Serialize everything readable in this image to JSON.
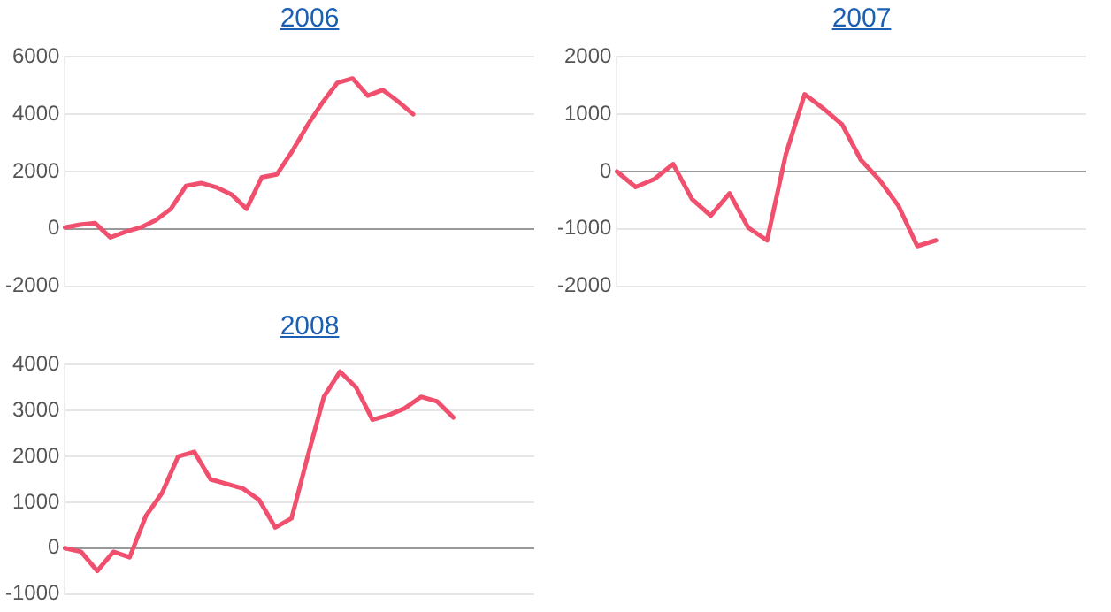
{
  "chart_data": [
    {
      "type": "line",
      "title": "2006",
      "categories": [
        null,
        null,
        null,
        null,
        null,
        null,
        null,
        null,
        null,
        null,
        null,
        null,
        null,
        null,
        null,
        null,
        null,
        null,
        null,
        null,
        null,
        null,
        null,
        null,
        null,
        null,
        null,
        null,
        null,
        null,
        null,
        null
      ],
      "series": [
        {
          "color": "#f0506e",
          "values": [
            50,
            150,
            200,
            -300,
            -100,
            50,
            300,
            700,
            1500,
            1600,
            1450,
            1200,
            700,
            1800,
            1900,
            2700,
            3600,
            4400,
            5100,
            5250,
            4650,
            4850,
            4450,
            4000,
            null,
            null,
            null,
            null,
            null,
            null,
            null,
            null
          ]
        }
      ],
      "ylim": [
        -2000,
        6000
      ],
      "yticks": [
        -2000,
        0,
        2000,
        4000,
        6000
      ],
      "grid": "y",
      "tick_labels": "y",
      "marker": "none"
    },
    {
      "type": "line",
      "title": "2007",
      "categories": [
        null,
        null,
        null,
        null,
        null,
        null,
        null,
        null,
        null,
        null,
        null,
        null,
        null,
        null,
        null,
        null,
        null,
        null,
        null,
        null,
        null,
        null,
        null,
        null,
        null,
        null
      ],
      "series": [
        {
          "color": "#f0506e",
          "values": [
            0,
            -270,
            -130,
            130,
            -480,
            -770,
            -380,
            -980,
            -1200,
            300,
            1350,
            1100,
            820,
            200,
            -150,
            -600,
            -1300,
            -1200,
            null,
            null,
            null,
            null,
            null,
            null,
            null,
            null
          ]
        }
      ],
      "ylim": [
        -2000,
        2000
      ],
      "yticks": [
        -2000,
        -1000,
        0,
        1000,
        2000
      ],
      "grid": "y",
      "tick_labels": "y",
      "marker": "none"
    },
    {
      "type": "line",
      "title": "2008",
      "categories": [
        null,
        null,
        null,
        null,
        null,
        null,
        null,
        null,
        null,
        null,
        null,
        null,
        null,
        null,
        null,
        null,
        null,
        null,
        null,
        null,
        null,
        null,
        null,
        null,
        null,
        null,
        null,
        null,
        null,
        null
      ],
      "series": [
        {
          "color": "#f0506e",
          "values": [
            0,
            -80,
            -500,
            -80,
            -200,
            700,
            1200,
            2000,
            2100,
            1500,
            1400,
            1300,
            1050,
            450,
            650,
            2000,
            3300,
            3850,
            3500,
            2800,
            2900,
            3050,
            3300,
            3200,
            2850,
            null,
            null,
            null,
            null,
            null
          ]
        }
      ],
      "ylim": [
        -1000,
        4000
      ],
      "yticks": [
        -1000,
        0,
        1000,
        2000,
        3000,
        4000
      ],
      "grid": "y",
      "tick_labels": "y",
      "marker": "none"
    }
  ]
}
